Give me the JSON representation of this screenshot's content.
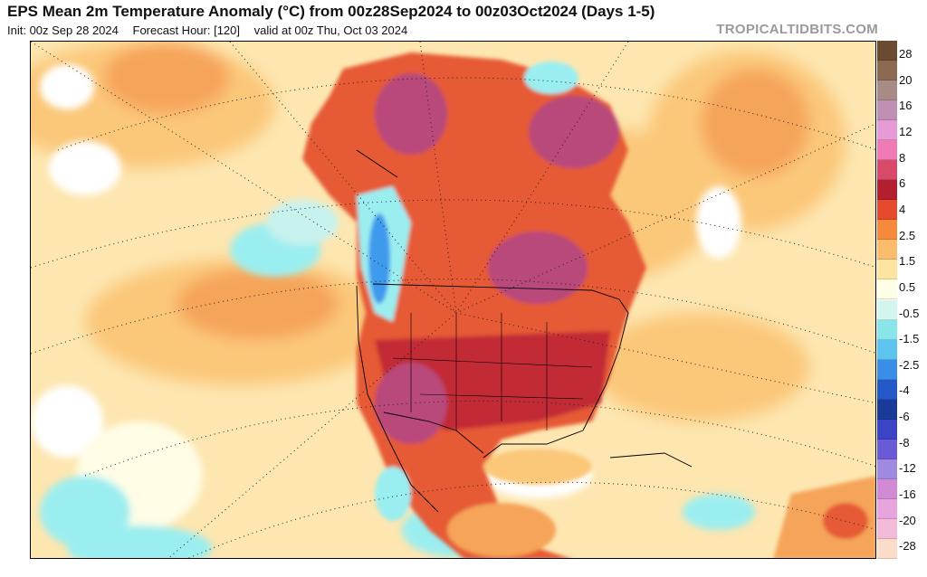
{
  "header": {
    "title": "EPS Mean 2m Temperature Anomaly (°C) from 00z28Sep2024 to 00z03Oct2024 (Days 1-5)",
    "init": "Init: 00z Sep 28 2024",
    "forecast_hour": "Forecast Hour: [120]",
    "valid": "valid at 00z Thu, Oct 03 2024",
    "site": "TROPICALTIDBITS.COM"
  },
  "colorbar": {
    "labels": [
      "28",
      "20",
      "16",
      "12",
      "8",
      "6",
      "4",
      "2.5",
      "1.5",
      "0.5",
      "-0.5",
      "-1.5",
      "-2.5",
      "-4",
      "-6",
      "-8",
      "-12",
      "-16",
      "-20",
      "-28"
    ],
    "colors": [
      "#6b4a32",
      "#8c6a52",
      "#a88a86",
      "#c090b4",
      "#e79bd6",
      "#f07ab4",
      "#d84a6a",
      "#b22030",
      "#e64a2c",
      "#f58a3c",
      "#fbbd6c",
      "#fde4a0",
      "#fffde6",
      "#d2f5ee",
      "#88e6ea",
      "#5cc4ee",
      "#3a8ee8",
      "#2458c8",
      "#1a3a9a",
      "#3a44c4",
      "#6a5ad6",
      "#a08ae0",
      "#d28ad4",
      "#e8a4dc",
      "#f2bcd8",
      "#fbdcc8"
    ]
  },
  "map": {
    "colors": {
      "ocean_base": "#fde6b0",
      "slight_warm": "#fbc87a",
      "warm": "#f6a45a",
      "hot": "#e65a34",
      "very_hot": "#c22a36",
      "extreme": "#b84a7a",
      "cool": "#9beef0",
      "cold": "#3e9aec"
    }
  }
}
